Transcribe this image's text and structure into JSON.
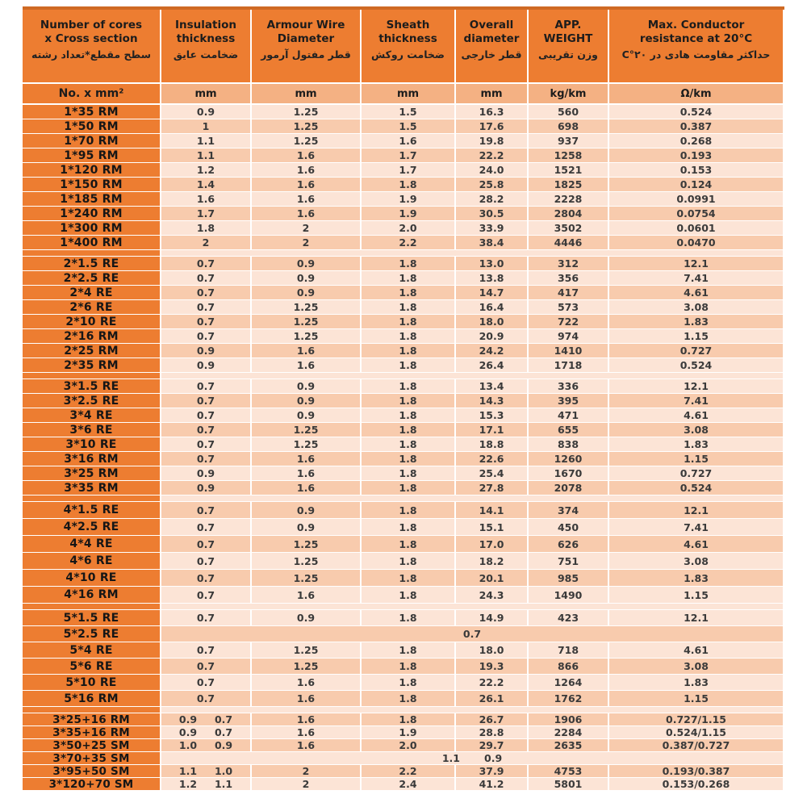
{
  "table": {
    "colors": {
      "header_orange": "#ED7D31",
      "units_row": "#F4B183",
      "row_light": "#FCE4D6",
      "row_dark": "#F8CBAD",
      "grid_line": "#FFFFFF",
      "top_border": "#CF6A24",
      "text_dark": "#1C1C1C"
    },
    "columns": [
      {
        "en": "Number of cores\nx Cross section",
        "fa": "سطح مقطع*تعداد رشته",
        "unit": "No. x mm²"
      },
      {
        "en": "Insulation\nthickness",
        "fa": "ضخامت عایق",
        "unit": "mm"
      },
      {
        "en": "Armour Wire\nDiameter",
        "fa": "قطر مفتول آرمور",
        "unit": "mm"
      },
      {
        "en": "Sheath\nthickness",
        "fa": "ضخامت روکش",
        "unit": "mm"
      },
      {
        "en": "Overall\ndiameter",
        "fa": "قطر خارجی",
        "unit": "mm"
      },
      {
        "en": "APP.\nWEIGHT",
        "fa": "وزن تقریبی",
        "unit": "kg/km"
      },
      {
        "en": "Max. Conductor\nresistance at 20°C",
        "fa": "حداکثر مقاومت هادی در ٢٠°C",
        "unit": "Ω/km"
      }
    ],
    "groups": [
      {
        "rows": [
          {
            "label": "1*35 RM",
            "cells": [
              "0.9",
              "1.25",
              "1.5",
              "16.3",
              "560",
              "0.524"
            ]
          },
          {
            "label": "1*50 RM",
            "cells": [
              "1",
              "1.25",
              "1.5",
              "17.6",
              "698",
              "0.387"
            ]
          },
          {
            "label": "1*70 RM",
            "cells": [
              "1.1",
              "1.25",
              "1.6",
              "19.8",
              "937",
              "0.268"
            ]
          },
          {
            "label": "1*95 RM",
            "cells": [
              "1.1",
              "1.6",
              "1.7",
              "22.2",
              "1258",
              "0.193"
            ]
          },
          {
            "label": "1*120 RM",
            "cells": [
              "1.2",
              "1.6",
              "1.7",
              "24.0",
              "1521",
              "0.153"
            ]
          },
          {
            "label": "1*150 RM",
            "cells": [
              "1.4",
              "1.6",
              "1.8",
              "25.8",
              "1825",
              "0.124"
            ]
          },
          {
            "label": "1*185 RM",
            "cells": [
              "1.6",
              "1.6",
              "1.9",
              "28.2",
              "2228",
              "0.0991"
            ]
          },
          {
            "label": "1*240 RM",
            "cells": [
              "1.7",
              "1.6",
              "1.9",
              "30.5",
              "2804",
              "0.0754"
            ]
          },
          {
            "label": "1*300 RM",
            "cells": [
              "1.8",
              "2",
              "2.0",
              "33.9",
              "3502",
              "0.0601"
            ]
          },
          {
            "label": "1*400 RM",
            "cells": [
              "2",
              "2",
              "2.2",
              "38.4",
              "4446",
              "0.0470"
            ]
          }
        ]
      },
      {
        "rows": [
          {
            "label": "2*1.5 RE",
            "cells": [
              "0.7",
              "0.9",
              "1.8",
              "13.0",
              "312",
              "12.1"
            ]
          },
          {
            "label": "2*2.5 RE",
            "cells": [
              "0.7",
              "0.9",
              "1.8",
              "13.8",
              "356",
              "7.41"
            ]
          },
          {
            "label": "2*4 RE",
            "cells": [
              "0.7",
              "0.9",
              "1.8",
              "14.7",
              "417",
              "4.61"
            ]
          },
          {
            "label": "2*6 RE",
            "cells": [
              "0.7",
              "1.25",
              "1.8",
              "16.4",
              "573",
              "3.08"
            ]
          },
          {
            "label": "2*10 RE",
            "cells": [
              "0.7",
              "1.25",
              "1.8",
              "18.0",
              "722",
              "1.83"
            ]
          },
          {
            "label": "2*16 RM",
            "cells": [
              "0.7",
              "1.25",
              "1.8",
              "20.9",
              "974",
              "1.15"
            ]
          },
          {
            "label": "2*25 RM",
            "cells": [
              "0.9",
              "1.6",
              "1.8",
              "24.2",
              "1410",
              "0.727"
            ]
          },
          {
            "label": "2*35 RM",
            "cells": [
              "0.9",
              "1.6",
              "1.8",
              "26.4",
              "1718",
              "0.524"
            ]
          }
        ]
      },
      {
        "rows": [
          {
            "label": "3*1.5 RE",
            "cells": [
              "0.7",
              "0.9",
              "1.8",
              "13.4",
              "336",
              "12.1"
            ]
          },
          {
            "label": "3*2.5 RE",
            "cells": [
              "0.7",
              "0.9",
              "1.8",
              "14.3",
              "395",
              "7.41"
            ]
          },
          {
            "label": "3*4 RE",
            "cells": [
              "0.7",
              "0.9",
              "1.8",
              "15.3",
              "471",
              "4.61"
            ]
          },
          {
            "label": "3*6 RE",
            "cells": [
              "0.7",
              "1.25",
              "1.8",
              "17.1",
              "655",
              "3.08"
            ]
          },
          {
            "label": "3*10 RE",
            "cells": [
              "0.7",
              "1.25",
              "1.8",
              "18.8",
              "838",
              "1.83"
            ]
          },
          {
            "label": "3*16 RM",
            "cells": [
              "0.7",
              "1.6",
              "1.8",
              "22.6",
              "1260",
              "1.15"
            ]
          },
          {
            "label": "3*25 RM",
            "cells": [
              "0.9",
              "1.6",
              "1.8",
              "25.4",
              "1670",
              "0.727"
            ]
          },
          {
            "label": "3*35 RM",
            "cells": [
              "0.9",
              "1.6",
              "1.8",
              "27.8",
              "2078",
              "0.524"
            ]
          }
        ]
      },
      {
        "rows": [
          {
            "label": "4*1.5 RE",
            "cells": [
              "0.7",
              "0.9",
              "1.8",
              "14.1",
              "374",
              "12.1"
            ]
          },
          {
            "label": "4*2.5 RE",
            "cells": [
              "0.7",
              "0.9",
              "1.8",
              "15.1",
              "450",
              "7.41"
            ]
          },
          {
            "label": "4*4 RE",
            "cells": [
              "0.7",
              "1.25",
              "1.8",
              "17.0",
              "626",
              "4.61"
            ]
          },
          {
            "label": "4*6 RE",
            "cells": [
              "0.7",
              "1.25",
              "1.8",
              "18.2",
              "751",
              "3.08"
            ]
          },
          {
            "label": "4*10 RE",
            "cells": [
              "0.7",
              "1.25",
              "1.8",
              "20.1",
              "985",
              "1.83"
            ]
          },
          {
            "label": "4*16 RM",
            "cells": [
              "0.7",
              "1.6",
              "1.8",
              "24.3",
              "1490",
              "1.15"
            ]
          }
        ]
      },
      {
        "rows": [
          {
            "label": "5*1.5 RE",
            "cells": [
              "0.7",
              "0.9",
              "1.8",
              "14.9",
              "423",
              "12.1"
            ]
          },
          {
            "label": "5*2.5 RE",
            "merged": [
              "0.7"
            ]
          },
          {
            "label": "5*4 RE",
            "cells": [
              "0.7",
              "1.25",
              "1.8",
              "18.0",
              "718",
              "4.61"
            ]
          },
          {
            "label": "5*6 RE",
            "cells": [
              "0.7",
              "1.25",
              "1.8",
              "19.3",
              "866",
              "3.08"
            ]
          },
          {
            "label": "5*10 RE",
            "cells": [
              "0.7",
              "1.6",
              "1.8",
              "22.2",
              "1264",
              "1.83"
            ]
          },
          {
            "label": "5*16 RM",
            "cells": [
              "0.7",
              "1.6",
              "1.8",
              "26.1",
              "1762",
              "1.15"
            ]
          }
        ]
      },
      {
        "rows": [
          {
            "label": "3*25+16 RM",
            "cells": [
              [
                "0.9",
                "0.7"
              ],
              "1.6",
              "1.8",
              "26.7",
              "1906",
              "0.727/1.15"
            ]
          },
          {
            "label": "3*35+16 RM",
            "cells": [
              [
                "0.9",
                "0.7"
              ],
              "1.6",
              "1.9",
              "28.8",
              "2284",
              "0.524/1.15"
            ]
          },
          {
            "label": "3*50+25 SM",
            "cells": [
              [
                "1.0",
                "0.9"
              ],
              "1.6",
              "2.0",
              "29.7",
              "2635",
              "0.387/0.727"
            ]
          },
          {
            "label": "3*70+35 SM",
            "merged": [
              "1.1",
              "0.9"
            ]
          },
          {
            "label": "3*95+50 SM",
            "cells": [
              [
                "1.1",
                "1.0"
              ],
              "2",
              "2.2",
              "37.9",
              "4753",
              "0.193/0.387"
            ]
          },
          {
            "label": "3*120+70 SM",
            "cells": [
              [
                "1.2",
                "1.1"
              ],
              "2",
              "2.4",
              "41.2",
              "5801",
              "0.153/0.268"
            ]
          }
        ]
      }
    ]
  }
}
